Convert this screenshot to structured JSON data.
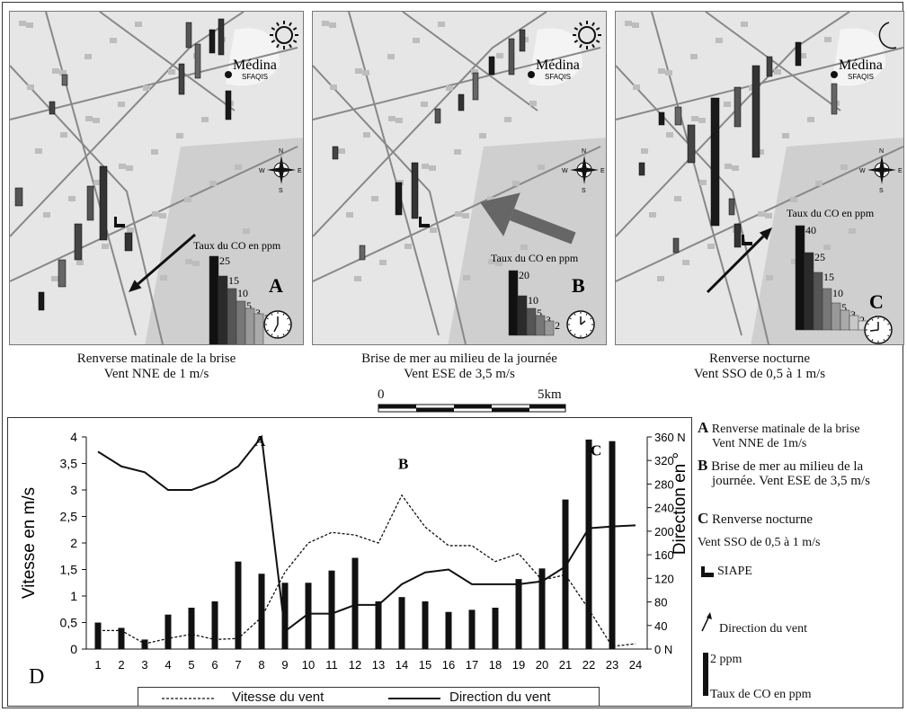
{
  "maps": [
    {
      "city": "Médina",
      "city_sub": "SFAQIS",
      "legend_title": "Taux du CO en ppm",
      "legend_values": [
        "25",
        "15",
        "10",
        "5",
        "3",
        "2"
      ],
      "letter": "A",
      "caption_line1": "Renverse matinale  de la brise",
      "caption_line2": "Vent NNE de 1 m/s",
      "time_icon": "sun-icon",
      "clock_icon": "clock-7-icon",
      "wind_arrow": "arrow-sw"
    },
    {
      "city": "Médina",
      "city_sub": "SFAQIS",
      "legend_title": "Taux du CO en ppm",
      "legend_values": [
        "20",
        "10",
        "5",
        "3",
        "2"
      ],
      "letter": "B",
      "caption_line1": "Brise de mer au milieu de la journée",
      "caption_line2": "Vent ESE de 3,5 m/s",
      "time_icon": "sun-icon",
      "clock_icon": "clock-1-icon",
      "wind_arrow": "arrow-wnw"
    },
    {
      "city": "Médina",
      "city_sub": "SFAQIS",
      "legend_title": "Taux du CO en ppm",
      "legend_values": [
        "40",
        "25",
        "15",
        "10",
        "5",
        "3",
        "2",
        "0,5"
      ],
      "letter": "C",
      "caption_line1": "Renverse nocturne",
      "caption_line2": "Vent SSO  de 0,5 à 1 m/s",
      "time_icon": "moon-icon",
      "clock_icon": "clock-9-icon",
      "wind_arrow": "arrow-ne"
    }
  ],
  "compass": {
    "n": "N",
    "s": "S",
    "e": "E",
    "w": "W"
  },
  "scale": {
    "start": "0",
    "end": "5km"
  },
  "chart_data": {
    "type": "bar",
    "panel_label": "D",
    "categories": [
      "1",
      "2",
      "3",
      "4",
      "5",
      "6",
      "7",
      "8",
      "9",
      "10",
      "11",
      "12",
      "13",
      "14",
      "15",
      "16",
      "17",
      "18",
      "19",
      "20",
      "21",
      "22",
      "23",
      "24"
    ],
    "ylabel": "Vitesse en m/s",
    "ylabel_right": "Direction en °",
    "ylim": [
      0,
      4
    ],
    "ylim_right": [
      0,
      360
    ],
    "yticks": [
      "0",
      "0,5",
      "1",
      "1,5",
      "2",
      "2,5",
      "3",
      "3,5",
      "4"
    ],
    "yticks_right": [
      "0 N",
      "40",
      "80",
      "120",
      "160",
      "200",
      "240",
      "280",
      "320",
      "360 N"
    ],
    "series": [
      {
        "name": "Vitesse du vent",
        "style": "dashed-line",
        "axis": "left",
        "values": [
          0.35,
          0.35,
          0.1,
          0.2,
          0.28,
          0.18,
          0.2,
          0.6,
          1.45,
          2.0,
          2.2,
          2.15,
          2.0,
          2.9,
          2.3,
          1.95,
          1.95,
          1.65,
          1.8,
          1.3,
          1.4,
          0.75,
          0.05,
          0.1
        ]
      },
      {
        "name": "Direction du vent",
        "style": "solid-line",
        "axis": "right",
        "values": [
          335,
          310,
          300,
          270,
          270,
          285,
          310,
          360,
          30,
          60,
          60,
          75,
          75,
          110,
          130,
          135,
          110,
          110,
          110,
          115,
          140,
          205,
          208,
          210
        ]
      },
      {
        "name": "Taux de CO",
        "style": "bar",
        "axis": "left",
        "values": [
          0.5,
          0.4,
          0.18,
          0.65,
          0.78,
          0.9,
          1.65,
          1.42,
          1.25,
          1.25,
          1.48,
          1.72,
          0.9,
          0.98,
          0.9,
          0.7,
          0.74,
          0.78,
          1.32,
          1.52,
          2.82,
          3.95,
          3.92,
          0
        ]
      }
    ],
    "annotations": [
      "A",
      "B",
      "C"
    ],
    "grid": false,
    "legend_position": "bottom"
  },
  "legend_right": {
    "a_letter": "A",
    "a_line1": "Renverse matinale  de la brise",
    "a_line2": "Vent NNE de 1m/s",
    "b_letter": "B",
    "b_line1": "Brise de mer au milieu de la",
    "b_line2": "journée. Vent ESE de 3,5 m/s",
    "c_letter": "C",
    "c_line1": "Renverse nocturne",
    "c_line2": "Vent SSO  de 0,5 à 1 m/s",
    "siape": "SIAPE",
    "direction": "Direction du vent",
    "ppm": "2 ppm",
    "co": "Taux de CO en ppm"
  },
  "bottom_legend": {
    "speed": "Vitesse du vent",
    "direction": "Direction du vent"
  },
  "colors": {
    "bar": "#111111",
    "map_bg": "#e6e6e6",
    "sea": "#cfcfcf",
    "arrow_b": "#666666"
  }
}
